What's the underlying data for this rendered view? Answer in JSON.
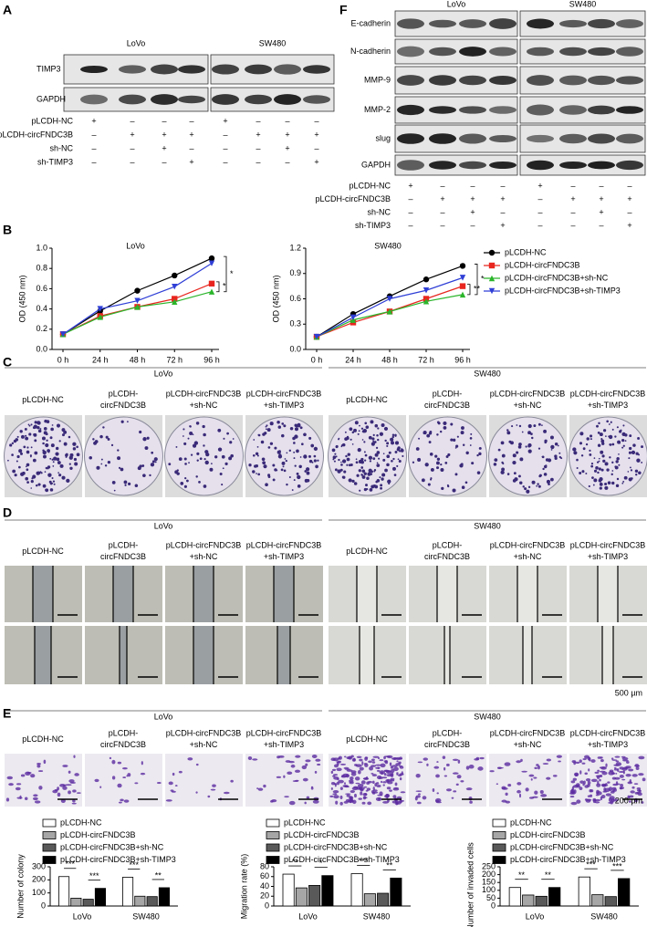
{
  "panel_a": {
    "label": "A",
    "groups": [
      "LoVo",
      "SW480"
    ],
    "rows": [
      "TIMP3",
      "GAPDH"
    ],
    "conditions": [
      {
        "name": "pLCDH-NC",
        "signs": [
          "+",
          "–",
          "–",
          "–",
          "+",
          "–",
          "–",
          "–"
        ]
      },
      {
        "name": "pLCDH-circFNDC3B",
        "signs": [
          "–",
          "+",
          "+",
          "+",
          "–",
          "+",
          "+",
          "+"
        ]
      },
      {
        "name": "sh-NC",
        "signs": [
          "–",
          "–",
          "+",
          "–",
          "–",
          "–",
          "+",
          "–"
        ]
      },
      {
        "name": "sh-TIMP3",
        "signs": [
          "–",
          "–",
          "–",
          "+",
          "–",
          "–",
          "–",
          "+"
        ]
      }
    ]
  },
  "panel_f": {
    "label": "F",
    "groups": [
      "LoVo",
      "SW480"
    ],
    "rows": [
      "E-cadherin",
      "N-cadherin",
      "MMP-9",
      "MMP-2",
      "slug",
      "GAPDH"
    ],
    "conditions": [
      {
        "name": "pLCDH-NC",
        "signs": [
          "+",
          "–",
          "–",
          "–",
          "+",
          "–",
          "–",
          "–"
        ]
      },
      {
        "name": "pLCDH-circFNDC3B",
        "signs": [
          "–",
          "+",
          "+",
          "+",
          "–",
          "+",
          "+",
          "+"
        ]
      },
      {
        "name": "sh-NC",
        "signs": [
          "–",
          "–",
          "+",
          "–",
          "–",
          "–",
          "+",
          "–"
        ]
      },
      {
        "name": "sh-TIMP3",
        "signs": [
          "–",
          "–",
          "–",
          "+",
          "–",
          "–",
          "–",
          "+"
        ]
      }
    ]
  },
  "panel_b": {
    "label": "B"
  },
  "panel_c": {
    "label": "C",
    "groups": [
      "LoVo",
      "SW480"
    ],
    "columns": [
      [
        "pLCDH-NC"
      ],
      [
        "pLCDH-",
        "circFNDC3B"
      ],
      [
        "pLCDH-circFNDC3B",
        "+sh-NC"
      ],
      [
        "pLCDH-circFNDC3B",
        "+sh-TIMP3"
      ]
    ]
  },
  "panel_d": {
    "label": "D",
    "groups": [
      "LoVo",
      "SW480"
    ],
    "columns": [
      [
        "pLCDH-NC"
      ],
      [
        "pLCDH-",
        "circFNDC3B"
      ],
      [
        "pLCDH-circFNDC3B",
        "+sh-NC"
      ],
      [
        "pLCDH-circFNDC3B",
        "+sh-TIMP3"
      ]
    ],
    "scale_bar": "500 µm"
  },
  "panel_e": {
    "label": "E",
    "groups": [
      "LoVo",
      "SW480"
    ],
    "columns": [
      [
        "pLCDH-NC"
      ],
      [
        "pLCDH-",
        "circFNDC3B"
      ],
      [
        "pLCDH-circFNDC3B",
        "+sh-NC"
      ],
      [
        "pLCDH-circFNDC3B",
        "+sh-TIMP3"
      ]
    ],
    "scale_bar": "200 µm"
  },
  "chart_data": [
    {
      "type": "line",
      "title": "LoVo",
      "y_label": "OD (450 nm)",
      "categories": [
        "0 h",
        "24 h",
        "48 h",
        "72 h",
        "96 h"
      ],
      "ylim": [
        0,
        1.0
      ],
      "yticks": [
        {
          "value": 0,
          "label": "0.0"
        },
        0.2,
        0.4,
        0.6,
        0.8,
        {
          "value": 1.0,
          "label": "1.0"
        }
      ],
      "annotations": [
        "*",
        "*"
      ],
      "series": [
        {
          "name": "pLCDH-NC",
          "color": "#000000",
          "values": [
            0.15,
            0.38,
            0.58,
            0.73,
            0.9
          ]
        },
        {
          "name": "pLCDH-circFNDC3B",
          "color": "#e8261f",
          "values": [
            0.15,
            0.33,
            0.42,
            0.5,
            0.65
          ]
        },
        {
          "name": "pLCDH-circFNDC3B+sh-NC",
          "color": "#2bb52b",
          "values": [
            0.15,
            0.32,
            0.42,
            0.47,
            0.57
          ]
        },
        {
          "name": "pLCDH-circFNDC3B+sh-TIMP3",
          "color": "#2f3fd6",
          "values": [
            0.15,
            0.4,
            0.48,
            0.62,
            0.85
          ]
        }
      ]
    },
    {
      "type": "line",
      "title": "SW480",
      "y_label": "OD (450 nm)",
      "categories": [
        "0 h",
        "24 h",
        "48 h",
        "72 h",
        "96 h"
      ],
      "ylim": [
        0,
        1.2
      ],
      "yticks": [
        {
          "value": 0,
          "label": "0.0"
        },
        0.3,
        0.6,
        0.9,
        1.2
      ],
      "annotations": [
        "**",
        "*"
      ],
      "series": [
        {
          "name": "pLCDH-NC",
          "color": "#000000",
          "values": [
            0.15,
            0.42,
            0.63,
            0.83,
            0.99
          ]
        },
        {
          "name": "pLCDH-circFNDC3B",
          "color": "#e8261f",
          "values": [
            0.15,
            0.32,
            0.45,
            0.6,
            0.75
          ]
        },
        {
          "name": "pLCDH-circFNDC3B+sh-NC",
          "color": "#2bb52b",
          "values": [
            0.15,
            0.35,
            0.45,
            0.57,
            0.65
          ]
        },
        {
          "name": "pLCDH-circFNDC3B+sh-TIMP3",
          "color": "#2f3fd6",
          "values": [
            0.15,
            0.38,
            0.6,
            0.7,
            0.85
          ]
        }
      ]
    },
    {
      "type": "bar",
      "y_label": "Number of colony",
      "categories": [
        "LoVo",
        "SW480"
      ],
      "ylim": [
        0,
        300
      ],
      "yticks": [
        0,
        100,
        200,
        300
      ],
      "annotations": [
        "***",
        "***",
        "***",
        "**"
      ],
      "series": [
        {
          "name": "pLCDH-NC",
          "color": "#ffffff",
          "values": [
            225,
            220
          ]
        },
        {
          "name": "pLCDH-circFNDC3B",
          "color": "#a6a6a6",
          "values": [
            60,
            75
          ]
        },
        {
          "name": "pLCDH-circFNDC3B+sh-NC",
          "color": "#595959",
          "values": [
            52,
            72
          ]
        },
        {
          "name": "pLCDH-circFNDC3B+sh-TIMP3",
          "color": "#000000",
          "values": [
            135,
            140
          ]
        }
      ]
    },
    {
      "type": "bar",
      "y_label": "Migration rate (%)",
      "categories": [
        "LoVo",
        "SW480"
      ],
      "ylim": [
        0,
        80
      ],
      "yticks": [
        0,
        20,
        40,
        60,
        80
      ],
      "annotations": [
        "**",
        "*",
        "***",
        "**"
      ],
      "series": [
        {
          "name": "pLCDH-NC",
          "color": "#ffffff",
          "values": [
            65,
            66
          ]
        },
        {
          "name": "pLCDH-circFNDC3B",
          "color": "#a6a6a6",
          "values": [
            37,
            25
          ]
        },
        {
          "name": "pLCDH-circFNDC3B+sh-NC",
          "color": "#595959",
          "values": [
            42,
            26
          ]
        },
        {
          "name": "pLCDH-circFNDC3B+sh-TIMP3",
          "color": "#000000",
          "values": [
            62,
            57
          ]
        }
      ]
    },
    {
      "type": "bar",
      "y_label": "Number of invaded cells",
      "categories": [
        "LoVo",
        "SW480"
      ],
      "ylim": [
        0,
        250
      ],
      "yticks": [
        0,
        50,
        100,
        150,
        200,
        250
      ],
      "annotations": [
        "**",
        "**",
        "***",
        "***"
      ],
      "series": [
        {
          "name": "pLCDH-NC",
          "color": "#ffffff",
          "values": [
            118,
            185
          ]
        },
        {
          "name": "pLCDH-circFNDC3B",
          "color": "#a6a6a6",
          "values": [
            70,
            72
          ]
        },
        {
          "name": "pLCDH-circFNDC3B+sh-NC",
          "color": "#595959",
          "values": [
            62,
            60
          ]
        },
        {
          "name": "pLCDH-circFNDC3B+sh-TIMP3",
          "color": "#000000",
          "values": [
            118,
            175
          ]
        }
      ]
    }
  ]
}
